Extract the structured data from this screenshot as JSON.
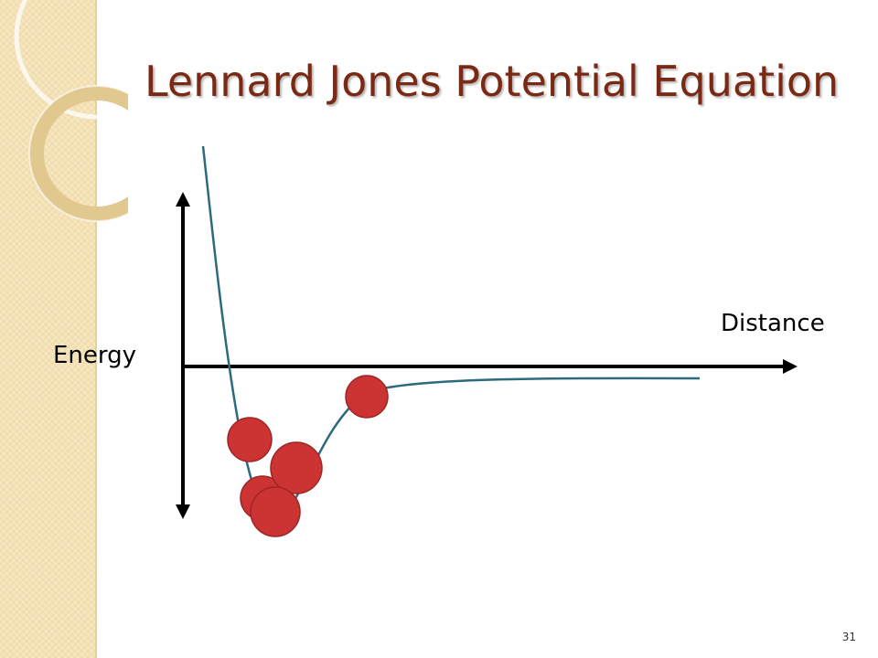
{
  "slide": {
    "title": "Lennard Jones Potential Equation",
    "page_number": "31"
  },
  "diagram": {
    "y_axis_label": "Energy",
    "x_axis_label": "Distance",
    "curve_color": "#2e6a7e",
    "particle_color": "#cc3333",
    "particle_outline_color": "#9e2626",
    "axis_color": "#000000",
    "particle_count": 5
  },
  "theme": {
    "title_color": "#7a2a14",
    "side_band_color": "#f4e2b5"
  }
}
